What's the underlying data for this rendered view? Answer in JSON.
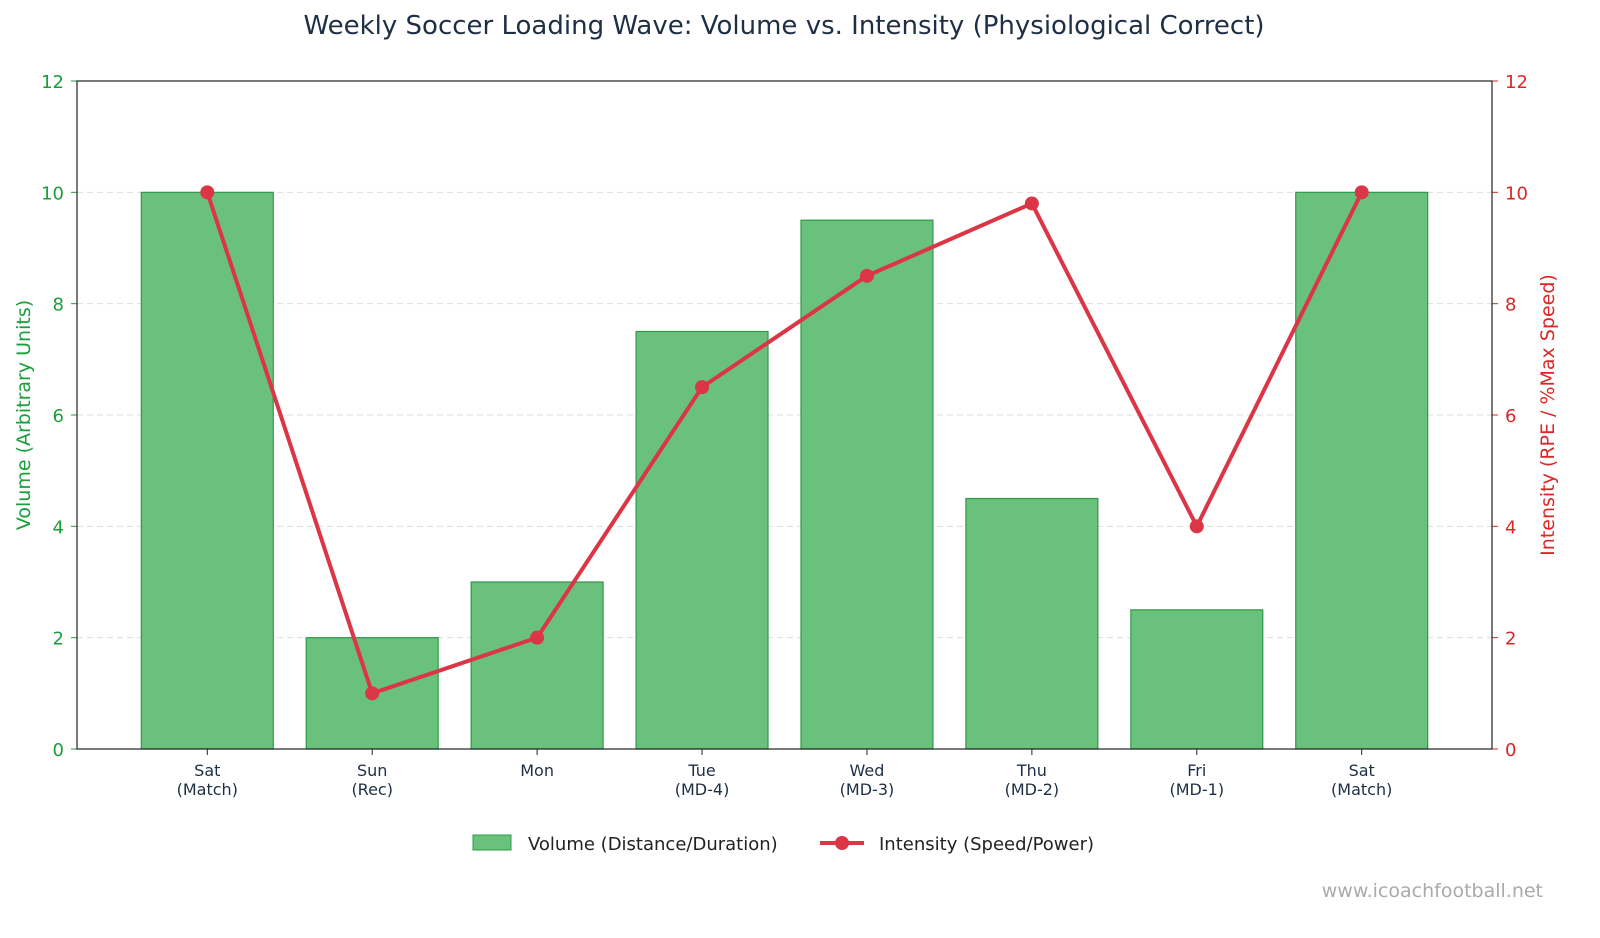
{
  "chart_data": {
    "type": "bar+line",
    "title": "Weekly Soccer Loading Wave: Volume vs. Intensity (Physiological Correct)",
    "categories": [
      [
        "Sat",
        "(Match)"
      ],
      [
        "Sun",
        "(Rec)"
      ],
      [
        "Mon",
        ""
      ],
      [
        "Tue",
        "(MD-4)"
      ],
      [
        "Wed",
        "(MD-3)"
      ],
      [
        "Thu",
        "(MD-2)"
      ],
      [
        "Fri",
        "(MD-1)"
      ],
      [
        "Sat",
        "(Match)"
      ]
    ],
    "series": [
      {
        "name": "Volume (Distance/Duration)",
        "type": "bar",
        "axis": "left",
        "values": [
          10,
          2,
          3,
          7.5,
          9.5,
          4.5,
          2.5,
          10
        ],
        "color": "#69c17b",
        "edge": "#2e9a4a"
      },
      {
        "name": "Intensity (Speed/Power)",
        "type": "line",
        "axis": "right",
        "values": [
          10,
          1,
          2,
          6.5,
          8.5,
          9.8,
          4,
          10
        ],
        "color": "#dc3545"
      }
    ],
    "ylabel": "Volume (Arbitrary Units)",
    "y2label": "Intensity (RPE / %Max Speed)",
    "ylim": [
      0,
      12
    ],
    "y2lim": [
      0,
      12
    ],
    "yticks": [
      0,
      2,
      4,
      6,
      8,
      10,
      12
    ],
    "grid": "horizontal dashed",
    "legend": "bottom-center",
    "left_axis_color": "#1a9e3a",
    "right_axis_color": "#dc2626"
  },
  "watermark": "www.icoachfootball.net"
}
